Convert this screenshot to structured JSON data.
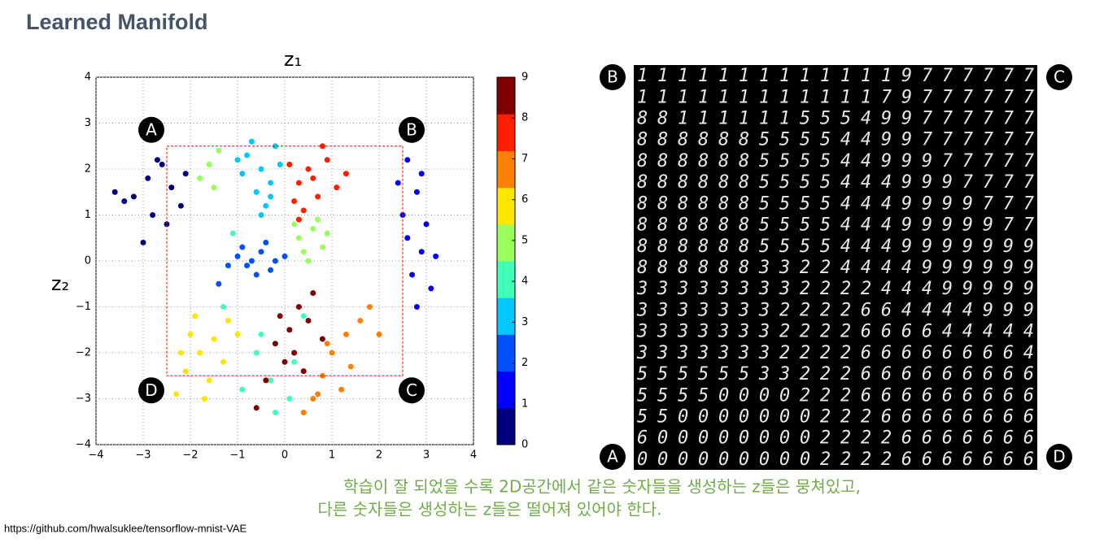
{
  "title": "Learned Manifold",
  "chart_data": {
    "type": "scatter",
    "xlabel": "z₁",
    "ylabel": "z₂",
    "xlim": [
      -4,
      4
    ],
    "ylim": [
      -4,
      4
    ],
    "xticks": [
      {
        "value": -4,
        "label": "−4"
      },
      {
        "value": -3,
        "label": "−3"
      },
      {
        "value": -2,
        "label": "−2"
      },
      {
        "value": -1,
        "label": "−1"
      },
      0,
      1,
      2,
      3,
      4
    ],
    "yticks": [
      {
        "value": -4,
        "label": "−4"
      },
      {
        "value": -3,
        "label": "−3"
      },
      {
        "value": -2,
        "label": "−2"
      },
      {
        "value": -1,
        "label": "−1"
      },
      0,
      1,
      2,
      3,
      4
    ],
    "grid": true,
    "colorbar": {
      "lim": [
        0,
        9
      ],
      "ticks": [
        0,
        1,
        2,
        3,
        4,
        5,
        6,
        7,
        8,
        9
      ]
    },
    "region": {
      "xlim": [
        -2.5,
        2.5
      ],
      "ylim": [
        -2.5,
        2.5
      ],
      "color": "#ff0000"
    },
    "corner_labels": [
      "A",
      "B",
      "C",
      "D"
    ],
    "series": [
      {
        "name": "0",
        "color": "#00007f",
        "x": [
          -3.2,
          -2.9,
          -2.6,
          -2.4,
          -2.2,
          -2.8,
          -3.4,
          -2.5,
          -2.1,
          -3.0,
          -3.6,
          -2.7
        ],
        "y": [
          1.4,
          1.8,
          2.1,
          1.6,
          1.2,
          1.0,
          1.3,
          0.8,
          1.9,
          0.4,
          1.5,
          2.2
        ]
      },
      {
        "name": "1",
        "color": "#0000ff",
        "x": [
          2.6,
          2.8,
          3.0,
          2.9,
          2.7,
          3.1,
          2.5,
          2.8,
          3.2,
          2.6,
          2.9,
          2.4
        ],
        "y": [
          2.2,
          1.5,
          0.8,
          0.2,
          -0.3,
          -0.6,
          1.0,
          -1.0,
          0.1,
          0.5,
          1.9,
          1.7
        ]
      },
      {
        "name": "2",
        "color": "#0050ff",
        "x": [
          -1.0,
          -0.8,
          -0.5,
          -0.2,
          -0.6,
          -0.9,
          -0.3,
          -1.2,
          -0.4,
          -0.7,
          -1.4,
          0.0
        ],
        "y": [
          0.1,
          -0.1,
          0.2,
          0.0,
          -0.3,
          0.3,
          -0.2,
          -0.1,
          0.4,
          0.0,
          -0.5,
          0.1
        ]
      },
      {
        "name": "3",
        "color": "#00c8ff",
        "x": [
          -0.8,
          -0.5,
          -0.3,
          -0.6,
          -0.2,
          -0.9,
          -0.4,
          -0.1,
          -0.7,
          -1.0,
          -0.5,
          -0.3
        ],
        "y": [
          2.3,
          2.0,
          1.7,
          1.5,
          2.5,
          1.9,
          1.2,
          2.1,
          2.6,
          2.2,
          1.0,
          1.4
        ]
      },
      {
        "name": "4",
        "color": "#40ffb7",
        "x": [
          -0.3,
          0.1,
          -0.6,
          -1.3,
          -1.6,
          0.4,
          -0.9,
          -0.2,
          -1.1,
          0.2,
          -1.8,
          -0.5
        ],
        "y": [
          -2.6,
          -3.0,
          -2.0,
          -1.0,
          2.1,
          -1.2,
          -2.8,
          -3.3,
          0.6,
          -2.2,
          1.8,
          -1.6
        ]
      },
      {
        "name": "5",
        "color": "#9aff5c",
        "x": [
          0.3,
          0.6,
          0.8,
          0.4,
          0.7,
          -1.6,
          -1.8,
          -1.4,
          0.9,
          0.2,
          0.5,
          -1.5
        ],
        "y": [
          0.5,
          0.7,
          0.3,
          0.2,
          0.9,
          2.1,
          1.8,
          2.4,
          0.6,
          0.8,
          0.0,
          1.6
        ]
      },
      {
        "name": "6",
        "color": "#ffe600",
        "x": [
          -1.8,
          -1.5,
          -2.1,
          -1.2,
          -2.0,
          -1.6,
          -2.3,
          -1.3,
          -1.9,
          -1.0,
          -2.2,
          -1.7
        ],
        "y": [
          -2.0,
          -1.7,
          -2.4,
          -1.3,
          -1.6,
          -2.6,
          -2.9,
          -2.2,
          -1.2,
          -1.6,
          -2.0,
          -3.0
        ]
      },
      {
        "name": "7",
        "color": "#ff8000",
        "x": [
          1.0,
          1.3,
          0.8,
          1.6,
          0.6,
          1.2,
          0.9,
          2.0,
          0.4,
          1.4,
          1.8,
          0.7
        ],
        "y": [
          -2.0,
          -1.6,
          -2.5,
          -1.3,
          -3.0,
          -2.8,
          -1.8,
          -1.6,
          -3.3,
          -2.3,
          -1.0,
          -2.9
        ]
      },
      {
        "name": "8",
        "color": "#ff1e00",
        "x": [
          0.3,
          0.5,
          0.7,
          0.2,
          0.4,
          0.9,
          0.6,
          1.1,
          0.1,
          0.8,
          1.3,
          0.3
        ],
        "y": [
          1.7,
          2.0,
          1.4,
          1.3,
          1.1,
          2.2,
          1.8,
          1.6,
          2.1,
          2.5,
          1.9,
          0.9
        ]
      },
      {
        "name": "9",
        "color": "#800000",
        "x": [
          0.1,
          0.3,
          -0.2,
          0.5,
          0.0,
          -0.4,
          0.6,
          0.2,
          -0.1,
          0.4,
          -0.6,
          0.8
        ],
        "y": [
          -1.5,
          -1.0,
          -1.8,
          -1.3,
          -2.2,
          -2.6,
          -0.7,
          -2.0,
          -1.2,
          -2.4,
          -3.2,
          -1.7
        ]
      }
    ]
  },
  "manifold_grid": {
    "rows": [
      "11111111111119777777",
      "11111111111179777777",
      "88111111555499777777",
      "88888855554499777777",
      "88888855554499977777",
      "88888855554449997777",
      "88888855554449999777",
      "88888855554449999977",
      "88888855554449999999",
      "88888833224444999999",
      "33333333222244499999",
      "33333332222664444999",
      "33333332222666644444",
      "33333332222666666664",
      "55555533222666666666",
      "55550000222666666666",
      "55000000022266666666",
      "60000000022226666666",
      "00000000022226666666"
    ],
    "corners": {
      "top_left": "B",
      "top_right": "C",
      "bottom_left": "A",
      "bottom_right": "D"
    }
  },
  "caption": [
    "학습이 잘 되었을 수록 2D공간에서 같은 숫자들을 생성하는 z들은 뭉쳐있고,",
    "다른 숫자들은 생성하는 z들은 떨어져 있어야 한다."
  ],
  "source": "https://github.com/hwalsuklee/tensorflow-mnist-VAE"
}
